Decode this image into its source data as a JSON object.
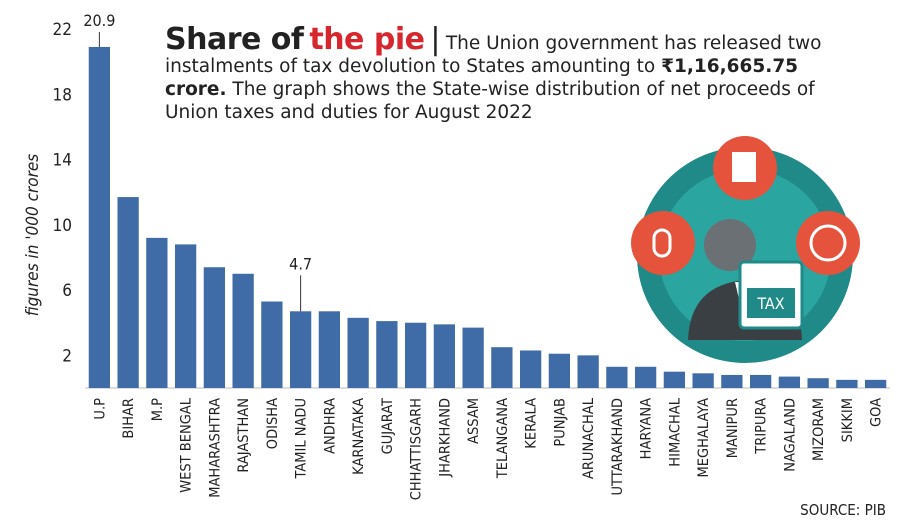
{
  "chart_data": {
    "type": "bar",
    "title": "Share of",
    "title_highlight": "the pie",
    "subtitle": "The Union government has released two instalments of tax devolution to States amounting to",
    "subtitle_bold": "₹1,16,665.75 crore.",
    "subtitle_end": "The graph shows the State-wise distribution of net proceeds of Union taxes and duties for August 2022",
    "y_label": "figures in '000 crores",
    "source": "SOURCE: PIB",
    "categories": [
      "U.P",
      "BIHAR",
      "M.P",
      "WEST BENGAL",
      "MAHARASHTRA",
      "RAJASTHAN",
      "ODISHA",
      "TAMIL NADU",
      "ANDHRA",
      "KARNATAKA",
      "GUJARAT",
      "CHHATTISGARH",
      "JHARKHAND",
      "ASSAM",
      "TELANGANA",
      "KERALA",
      "PUNJAB",
      "ARUNACHAL",
      "UTTARAKHAND",
      "HARYANA",
      "HIMACHAL",
      "MEGHALAYA",
      "MANIPUR",
      "TRIPURA",
      "NAGALAND",
      "MIZORAM",
      "SIKKIM",
      "GOA"
    ],
    "values": [
      20.9,
      11.7,
      9.2,
      8.8,
      7.4,
      7.0,
      5.3,
      4.7,
      4.7,
      4.3,
      4.1,
      4.0,
      3.9,
      3.7,
      2.5,
      2.3,
      2.1,
      2.0,
      1.3,
      1.3,
      1.0,
      0.9,
      0.8,
      0.8,
      0.7,
      0.6,
      0.5,
      0.5
    ],
    "labeled_categories": [
      "U.P",
      "TAMIL NADU"
    ],
    "color": "#3f6ca6",
    "ylim": [
      0,
      22
    ],
    "yticks": [
      2,
      6,
      10,
      14,
      18,
      22
    ],
    "grid": false
  }
}
